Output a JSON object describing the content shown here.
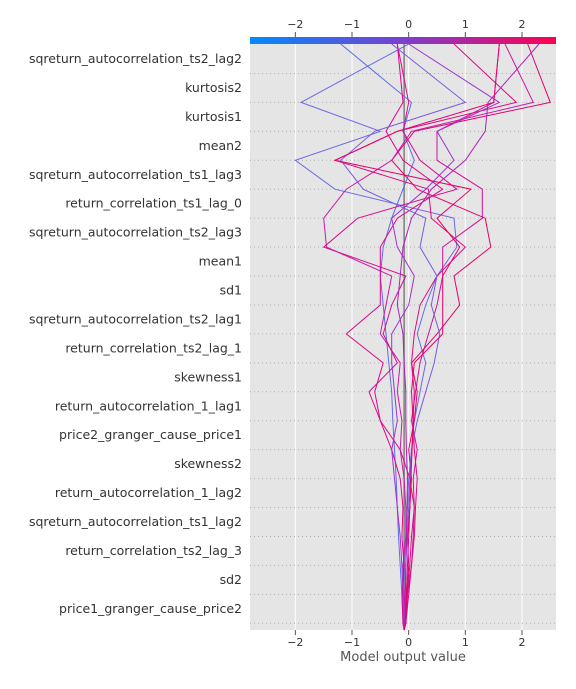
{
  "chart_data": {
    "type": "line",
    "title": "",
    "xlabel": "Model output value",
    "ylabel": "",
    "xlim": [
      -2.8,
      2.6
    ],
    "x_ticks": [
      -2,
      -1,
      0,
      1,
      2
    ],
    "x_tick_labels": [
      "−2",
      "−1",
      "0",
      "1",
      "2"
    ],
    "base_value": -0.08,
    "colorbar": {
      "min": -2.8,
      "max": 2.6,
      "colors": [
        "#008bfb",
        "#ff0051"
      ]
    },
    "grid": true,
    "features": [
      "sqreturn_autocorrelation_ts2_lag2",
      "kurtosis2",
      "kurtosis1",
      "mean2",
      "sqreturn_autocorrelation_ts1_lag3",
      "return_correlation_ts1_lag_0",
      "sqreturn_autocorrelation_ts2_lag3",
      "mean1",
      "sd1",
      "sqreturn_autocorrelation_ts2_lag1",
      "return_correlation_ts2_lag_1",
      "skewness1",
      "return_autocorrelation_1_lag1",
      "price2_granger_cause_price1",
      "skewness2",
      "return_autocorrelation_1_lag2",
      "sqreturn_autocorrelation_ts1_lag2",
      "return_correlation_ts2_lag_3",
      "sd2",
      "price1_granger_cause_price2"
    ],
    "series": [
      {
        "color": "#5b6ee8",
        "values": [
          -0.08,
          -0.1,
          -0.12,
          -0.15,
          -0.18,
          -0.2,
          -0.22,
          -0.25,
          -0.28,
          -0.3,
          -0.35,
          -0.4,
          -0.45,
          -0.5,
          -0.45,
          -0.3,
          -0.1,
          0.1,
          -0.1,
          0.05,
          -1.2
        ]
      },
      {
        "color": "#6a6ae6",
        "values": [
          -0.08,
          -0.06,
          -0.04,
          -0.08,
          -0.05,
          -0.02,
          0.0,
          0.05,
          0.1,
          0.2,
          0.3,
          0.15,
          0.3,
          0.5,
          0.85,
          0.8,
          -1.3,
          -2.0,
          -0.5,
          -1.9,
          0.0
        ]
      },
      {
        "color": "#d0109a",
        "values": [
          -0.08,
          -0.05,
          -0.02,
          0.02,
          0.05,
          0.1,
          0.08,
          0.15,
          0.05,
          0.12,
          0.2,
          0.35,
          0.5,
          0.6,
          0.6,
          1.3,
          1.3,
          0.5,
          0.5,
          1.5,
          1.6
        ]
      },
      {
        "color": "#e3006f",
        "values": [
          -0.08,
          -0.05,
          -0.03,
          0.0,
          -0.02,
          0.02,
          0.05,
          0.0,
          0.1,
          0.15,
          0.05,
          0.5,
          0.9,
          0.8,
          1.45,
          1.35,
          0.15,
          -0.3,
          0.1,
          2.5,
          2.1
        ]
      },
      {
        "color": "#cc1aa5",
        "values": [
          -0.08,
          -0.06,
          -0.08,
          -0.1,
          -0.05,
          -0.05,
          -0.08,
          -0.15,
          -0.12,
          -0.2,
          -0.15,
          -0.5,
          -0.4,
          -0.3,
          -1.45,
          -1.5,
          -1.1,
          -0.3,
          0.05,
          2.2,
          1.7
        ]
      },
      {
        "color": "#dd0a7e",
        "values": [
          -0.08,
          -0.05,
          0.0,
          0.05,
          0.1,
          0.12,
          0.15,
          0.1,
          0.08,
          0.1,
          0.05,
          0.1,
          0.2,
          0.5,
          1.0,
          0.4,
          0.35,
          -1.3,
          -0.2,
          1.9,
          0.8
        ]
      },
      {
        "color": "#d60d8d",
        "values": [
          -0.08,
          -0.06,
          -0.02,
          0.05,
          0.08,
          0.1,
          0.02,
          -0.15,
          -0.5,
          -0.7,
          -0.2,
          -0.45,
          -0.3,
          -0.05,
          -1.5,
          -0.9,
          0.85,
          0.2,
          -0.1,
          0.0,
          -0.2
        ]
      },
      {
        "color": "#df058a",
        "values": [
          -0.08,
          -0.1,
          -0.12,
          -0.08,
          -0.12,
          -0.1,
          -0.15,
          -0.3,
          -0.5,
          -0.6,
          -0.45,
          -1.1,
          -0.5,
          -0.5,
          -0.5,
          -0.2,
          0.6,
          -0.1,
          -0.4,
          -0.1,
          -0.2
        ]
      },
      {
        "color": "#a030d0",
        "values": [
          -0.08,
          -0.09,
          -0.1,
          -0.12,
          -0.15,
          -0.2,
          -0.25,
          -0.3,
          -0.2,
          -0.25,
          -0.3,
          -0.3,
          0.0,
          0.1,
          -0.2,
          -0.3,
          0.3,
          0.8,
          0.5,
          1.6,
          0.0
        ]
      },
      {
        "color": "#7a5ae0",
        "values": [
          -0.08,
          -0.07,
          -0.06,
          -0.05,
          -0.03,
          0.0,
          0.02,
          0.05,
          0.15,
          0.3,
          0.45,
          0.55,
          0.4,
          0.5,
          0.2,
          0.3,
          -0.8,
          -1.2,
          -0.6,
          1.0,
          -0.3
        ]
      },
      {
        "color": "#b020b8",
        "values": [
          -0.08,
          -0.07,
          -0.06,
          -0.05,
          -0.04,
          -0.03,
          -0.02,
          -0.04,
          -0.05,
          -0.05,
          -0.08,
          -0.1,
          -0.2,
          -0.15,
          -0.1,
          0.05,
          0.4,
          1.0,
          1.35,
          1.4,
          2.3
        ]
      },
      {
        "color": "#e8006a",
        "values": [
          -0.08,
          -0.06,
          -0.04,
          -0.02,
          0.0,
          0.02,
          0.04,
          0.06,
          0.08,
          0.05,
          0.1,
          0.6,
          0.6,
          0.6,
          0.9,
          0.5,
          1.1,
          -1.3,
          -0.2,
          1.5,
          1.6
        ]
      }
    ]
  }
}
